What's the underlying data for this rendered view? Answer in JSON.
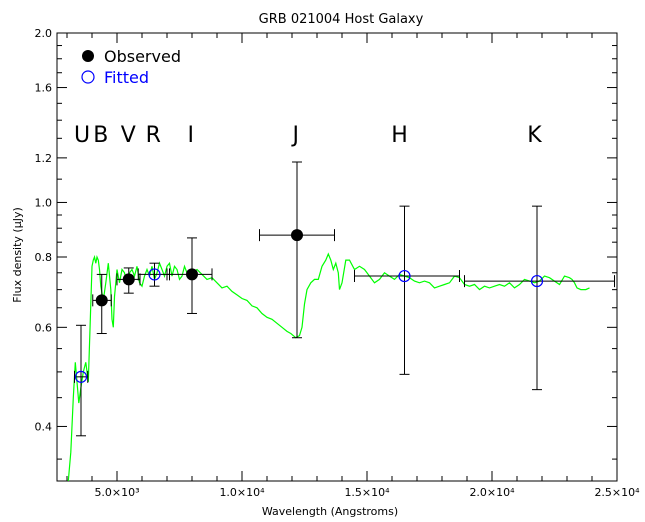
{
  "chart_data": {
    "type": "scatter",
    "title": "GRB 021004 Host Galaxy",
    "xlabel": "Wavelength (Angstroms)",
    "ylabel": "Flux density (μJy)",
    "xlim": [
      2600,
      25000
    ],
    "ylim": [
      0.32,
      2.0
    ],
    "yscale": "log",
    "x_ticks": [
      {
        "value": 5000,
        "label": "5.0×10³"
      },
      {
        "value": 10000,
        "label": "1.0×10⁴"
      },
      {
        "value": 15000,
        "label": "1.5×10⁴"
      },
      {
        "value": 20000,
        "label": "2.0×10⁴"
      },
      {
        "value": 25000,
        "label": "2.5×10⁴"
      }
    ],
    "y_ticks": [
      {
        "value": 0.4,
        "label": "0.4"
      },
      {
        "value": 0.6,
        "label": "0.6"
      },
      {
        "value": 0.8,
        "label": "0.8"
      },
      {
        "value": 1.0,
        "label": "1.0"
      },
      {
        "value": 1.2,
        "label": "1.2"
      },
      {
        "value": 1.6,
        "label": "1.6"
      },
      {
        "value": 2.0,
        "label": "2.0"
      }
    ],
    "legend": [
      {
        "label": "Observed",
        "marker": "filled-circle",
        "color": "#000000"
      },
      {
        "label": "Fitted",
        "marker": "open-circle",
        "color": "#0000ff"
      }
    ],
    "legend_position": "top-left",
    "band_labels": [
      {
        "label": "U",
        "x": 3600
      },
      {
        "label": "B",
        "x": 4350
      },
      {
        "label": "V",
        "x": 5450
      },
      {
        "label": "R",
        "x": 6450
      },
      {
        "label": "I",
        "x": 7950
      },
      {
        "label": "J",
        "x": 12150
      },
      {
        "label": "H",
        "x": 16300
      },
      {
        "label": "K",
        "x": 21700
      }
    ],
    "observed": [
      {
        "x": 4390,
        "y": 0.67,
        "xerr": [
          4030,
          4770
        ],
        "yerr": [
          0.585,
          0.745
        ]
      },
      {
        "x": 5470,
        "y": 0.73,
        "xerr": [
          5000,
          5920
        ],
        "yerr": [
          0.69,
          0.765
        ]
      },
      {
        "x": 8000,
        "y": 0.745,
        "xerr": [
          7000,
          8800
        ],
        "yerr": [
          0.635,
          0.865
        ]
      },
      {
        "x": 12200,
        "y": 0.875,
        "xerr": [
          10700,
          13700
        ],
        "yerr": [
          0.575,
          1.18
        ]
      }
    ],
    "fitted": [
      {
        "x": 3560,
        "y": 0.49,
        "xerr": [
          3300,
          3830
        ],
        "yerr": [
          0.385,
          0.605
        ]
      },
      {
        "x": 6500,
        "y": 0.745,
        "xerr": [
          5850,
          7100
        ],
        "yerr": [
          0.71,
          0.78
        ]
      },
      {
        "x": 16500,
        "y": 0.74,
        "xerr": [
          14500,
          18700
        ],
        "yerr": [
          0.495,
          0.985
        ]
      },
      {
        "x": 21800,
        "y": 0.725,
        "xerr": [
          18900,
          24900
        ],
        "yerr": [
          0.465,
          0.985
        ]
      }
    ],
    "model_spectrum": [
      [
        3050,
        0.32
      ],
      [
        3150,
        0.36
      ],
      [
        3250,
        0.45
      ],
      [
        3330,
        0.52
      ],
      [
        3400,
        0.48
      ],
      [
        3470,
        0.44
      ],
      [
        3560,
        0.47
      ],
      [
        3650,
        0.5
      ],
      [
        3750,
        0.52
      ],
      [
        3850,
        0.48
      ],
      [
        3950,
        0.66
      ],
      [
        4000,
        0.77
      ],
      [
        4050,
        0.79
      ],
      [
        4100,
        0.8
      ],
      [
        4150,
        0.78
      ],
      [
        4200,
        0.8
      ],
      [
        4250,
        0.79
      ],
      [
        4300,
        0.76
      ],
      [
        4350,
        0.71
      ],
      [
        4450,
        0.67
      ],
      [
        4550,
        0.72
      ],
      [
        4650,
        0.78
      ],
      [
        4750,
        0.7
      ],
      [
        4800,
        0.62
      ],
      [
        4850,
        0.6
      ],
      [
        4900,
        0.68
      ],
      [
        5000,
        0.76
      ],
      [
        5100,
        0.72
      ],
      [
        5200,
        0.76
      ],
      [
        5300,
        0.75
      ],
      [
        5400,
        0.72
      ],
      [
        5500,
        0.75
      ],
      [
        5600,
        0.76
      ],
      [
        5700,
        0.74
      ],
      [
        5800,
        0.77
      ],
      [
        5900,
        0.72
      ],
      [
        6000,
        0.71
      ],
      [
        6100,
        0.74
      ],
      [
        6200,
        0.76
      ],
      [
        6300,
        0.74
      ],
      [
        6400,
        0.77
      ],
      [
        6500,
        0.73
      ],
      [
        6600,
        0.75
      ],
      [
        6700,
        0.78
      ],
      [
        6800,
        0.76
      ],
      [
        6900,
        0.74
      ],
      [
        7000,
        0.77
      ],
      [
        7100,
        0.78
      ],
      [
        7200,
        0.74
      ],
      [
        7300,
        0.77
      ],
      [
        7400,
        0.76
      ],
      [
        7500,
        0.73
      ],
      [
        7600,
        0.74
      ],
      [
        7700,
        0.77
      ],
      [
        7800,
        0.75
      ],
      [
        7900,
        0.74
      ],
      [
        8000,
        0.75
      ],
      [
        8200,
        0.76
      ],
      [
        8400,
        0.745
      ],
      [
        8600,
        0.73
      ],
      [
        8800,
        0.735
      ],
      [
        9000,
        0.72
      ],
      [
        9200,
        0.705
      ],
      [
        9400,
        0.71
      ],
      [
        9600,
        0.695
      ],
      [
        9800,
        0.685
      ],
      [
        10000,
        0.675
      ],
      [
        10200,
        0.67
      ],
      [
        10400,
        0.655
      ],
      [
        10600,
        0.65
      ],
      [
        10800,
        0.635
      ],
      [
        11000,
        0.625
      ],
      [
        11200,
        0.62
      ],
      [
        11400,
        0.61
      ],
      [
        11600,
        0.6
      ],
      [
        11800,
        0.59
      ],
      [
        11950,
        0.585
      ],
      [
        12150,
        0.575
      ],
      [
        12300,
        0.58
      ],
      [
        12400,
        0.6
      ],
      [
        12500,
        0.66
      ],
      [
        12600,
        0.7
      ],
      [
        12750,
        0.72
      ],
      [
        12900,
        0.73
      ],
      [
        13050,
        0.73
      ],
      [
        13200,
        0.77
      ],
      [
        13350,
        0.79
      ],
      [
        13450,
        0.81
      ],
      [
        13550,
        0.79
      ],
      [
        13650,
        0.76
      ],
      [
        13750,
        0.78
      ],
      [
        13850,
        0.75
      ],
      [
        13900,
        0.7
      ],
      [
        14000,
        0.72
      ],
      [
        14150,
        0.79
      ],
      [
        14300,
        0.79
      ],
      [
        14500,
        0.76
      ],
      [
        14700,
        0.77
      ],
      [
        14900,
        0.76
      ],
      [
        15100,
        0.74
      ],
      [
        15300,
        0.72
      ],
      [
        15500,
        0.73
      ],
      [
        15700,
        0.75
      ],
      [
        15900,
        0.74
      ],
      [
        16100,
        0.73
      ],
      [
        16300,
        0.745
      ],
      [
        16500,
        0.74
      ],
      [
        16700,
        0.735
      ],
      [
        16900,
        0.725
      ],
      [
        17100,
        0.72
      ],
      [
        17300,
        0.725
      ],
      [
        17500,
        0.72
      ],
      [
        17700,
        0.705
      ],
      [
        17900,
        0.71
      ],
      [
        18100,
        0.715
      ],
      [
        18300,
        0.72
      ],
      [
        18500,
        0.74
      ],
      [
        18700,
        0.735
      ],
      [
        18900,
        0.715
      ],
      [
        19100,
        0.71
      ],
      [
        19300,
        0.715
      ],
      [
        19500,
        0.7
      ],
      [
        19700,
        0.71
      ],
      [
        19900,
        0.705
      ],
      [
        20100,
        0.71
      ],
      [
        20300,
        0.715
      ],
      [
        20500,
        0.71
      ],
      [
        20700,
        0.72
      ],
      [
        20900,
        0.705
      ],
      [
        21100,
        0.715
      ],
      [
        21300,
        0.73
      ],
      [
        21500,
        0.725
      ],
      [
        21700,
        0.72
      ],
      [
        21900,
        0.725
      ],
      [
        22100,
        0.74
      ],
      [
        22300,
        0.735
      ],
      [
        22500,
        0.725
      ],
      [
        22700,
        0.715
      ],
      [
        22900,
        0.74
      ],
      [
        23100,
        0.735
      ],
      [
        23200,
        0.73
      ],
      [
        23300,
        0.72
      ],
      [
        23400,
        0.705
      ],
      [
        23550,
        0.7
      ],
      [
        23750,
        0.7
      ],
      [
        23900,
        0.705
      ]
    ],
    "colors": {
      "model": "#00ff00",
      "observed": "#000000",
      "fitted": "#0000ff",
      "axes": "#000000"
    }
  }
}
